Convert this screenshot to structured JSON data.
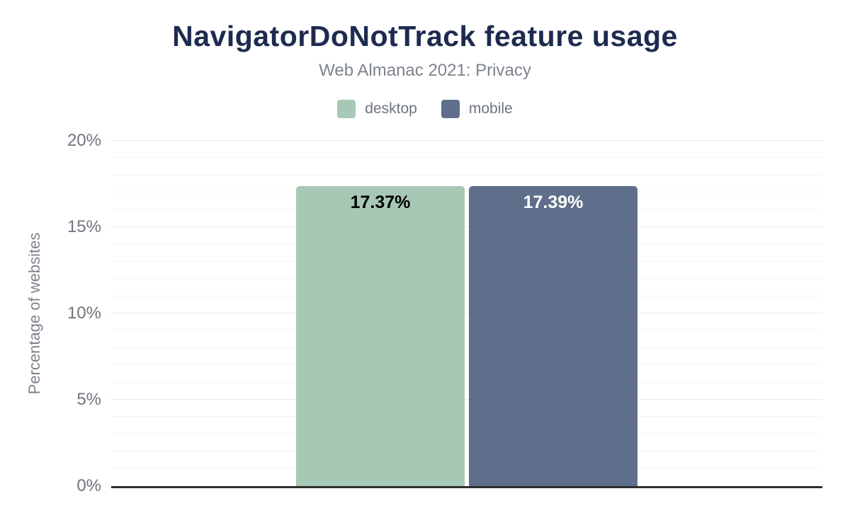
{
  "figure": {
    "title": "NavigatorDoNotTrack feature usage",
    "subtitle": "Web Almanac 2021: Privacy",
    "y_axis_title": "Percentage of websites"
  },
  "colors": {
    "title_navy": "#1e2b4f",
    "subtitle_gray": "#7d838d",
    "tick_gray": "#6f757e",
    "axis_line": "#2f2f2f",
    "gridline_minor": "#f4f4f4",
    "gridline_major": "#e8e8e8",
    "desktop_green": "#a7c8b5",
    "mobile_slate": "#5f6e8a"
  },
  "chart_data": {
    "type": "bar",
    "title": "NavigatorDoNotTrack feature usage",
    "subtitle": "Web Almanac 2021: Privacy",
    "xlabel": "",
    "ylabel": "Percentage of websites",
    "ylim": [
      0,
      20
    ],
    "grid": {
      "minor_step": 1,
      "major_step": 5
    },
    "legend_position": "top",
    "yticks": [
      {
        "label": "0%",
        "value": 0
      },
      {
        "label": "5%",
        "value": 5
      },
      {
        "label": "10%",
        "value": 10
      },
      {
        "label": "15%",
        "value": 15
      },
      {
        "label": "20%",
        "value": 20
      }
    ],
    "categories": [
      "NavigatorDoNotTrack"
    ],
    "series": [
      {
        "name": "desktop",
        "value": 17.37,
        "label": "17.37%",
        "color": "#a7c8b5",
        "label_color": "#000000"
      },
      {
        "name": "mobile",
        "value": 17.39,
        "label": "17.39%",
        "color": "#5f6e8a",
        "label_color": "#ffffff"
      }
    ]
  }
}
